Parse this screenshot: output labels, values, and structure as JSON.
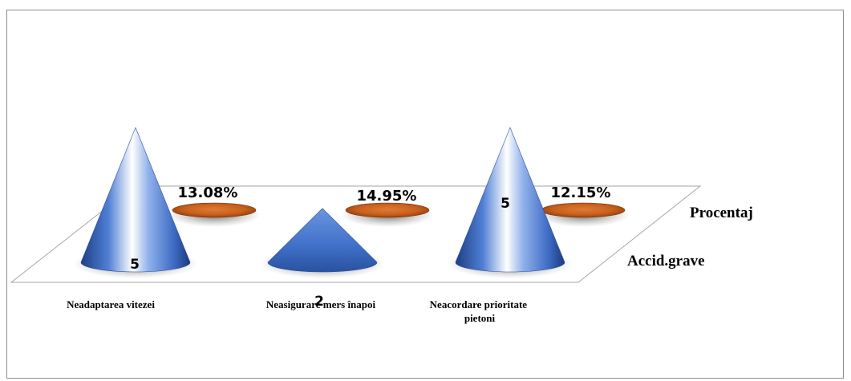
{
  "chart_data": {
    "type": "bar",
    "style": "3d-cone",
    "categories": [
      "Neadaptarea vitezei",
      "Neasigurare mers înapoi",
      "Neacordare prioritate pietoni"
    ],
    "series": [
      {
        "name": "Accid.grave",
        "values": [
          5,
          2,
          5
        ],
        "labels": [
          "5",
          "2",
          "5"
        ],
        "color": "#4472c4"
      },
      {
        "name": "Procentaj",
        "values": [
          13.08,
          14.95,
          12.15
        ],
        "labels": [
          "13.08%",
          "14.95%",
          "12.15%"
        ],
        "color": "#c55a11"
      }
    ],
    "ylim": [
      0,
      5
    ],
    "grid": false,
    "legend": "none"
  }
}
